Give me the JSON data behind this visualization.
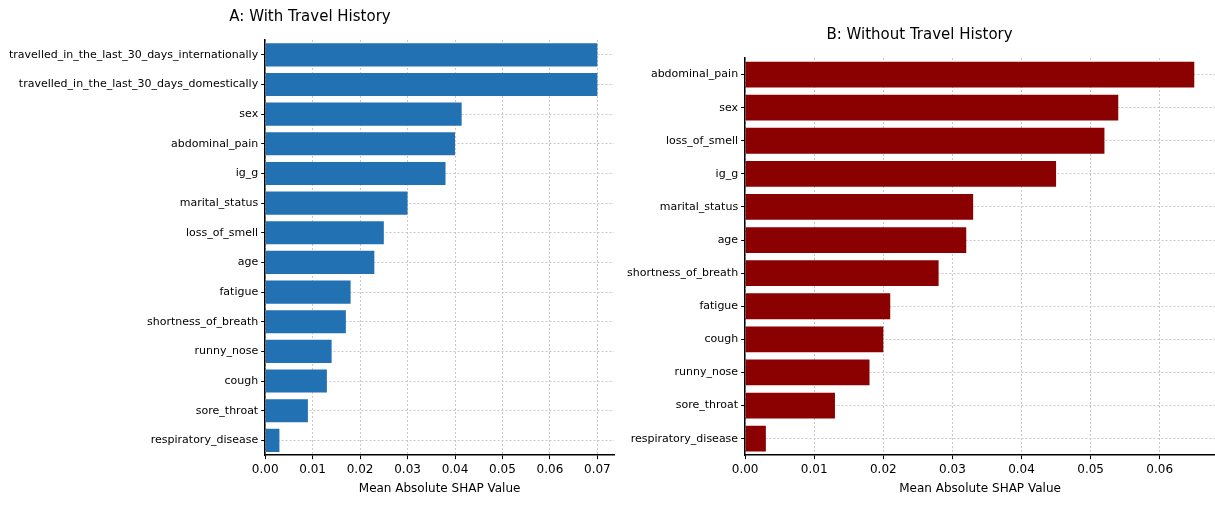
{
  "chart_data": [
    {
      "type": "bar",
      "orientation": "horizontal",
      "title": "A: With Travel History",
      "xlabel": "Mean Absolute SHAP Value",
      "categories": [
        "travelled_in_the_last_30_days_internationally",
        "travelled_in_the_last_30_days_domestically",
        "sex",
        "abdominal_pain",
        "ig_g",
        "marital_status",
        "loss_of_smell",
        "age",
        "fatigue",
        "shortness_of_breath",
        "runny_nose",
        "cough",
        "sore_throat",
        "respiratory_disease"
      ],
      "values": [
        0.07,
        0.07,
        0.0414,
        0.04,
        0.038,
        0.03,
        0.025,
        0.023,
        0.018,
        0.017,
        0.014,
        0.013,
        0.009,
        0.003
      ],
      "color": "#2271b3",
      "xlim": [
        0,
        0.0735
      ],
      "xticks": [
        {
          "value": 0,
          "label": "0.00"
        },
        0.01,
        0.02,
        0.03,
        0.04,
        0.05,
        0.06,
        0.07
      ],
      "grid": true
    },
    {
      "type": "bar",
      "orientation": "horizontal",
      "title": "B: Without Travel History",
      "xlabel": "Mean Absolute SHAP Value",
      "categories": [
        "abdominal_pain",
        "sex",
        "loss_of_smell",
        "ig_g",
        "marital_status",
        "age",
        "shortness_of_breath",
        "fatigue",
        "cough",
        "runny_nose",
        "sore_throat",
        "respiratory_disease"
      ],
      "values": [
        0.065,
        0.054,
        0.052,
        0.045,
        0.033,
        0.032,
        0.028,
        0.021,
        0.02,
        0.018,
        0.013,
        0.003
      ],
      "color": "#8b0000",
      "xlim": [
        0,
        0.068
      ],
      "xticks": [
        {
          "value": 0,
          "label": "0.00"
        },
        0.01,
        0.02,
        0.03,
        0.04,
        0.05,
        0.06
      ],
      "grid": true
    }
  ]
}
